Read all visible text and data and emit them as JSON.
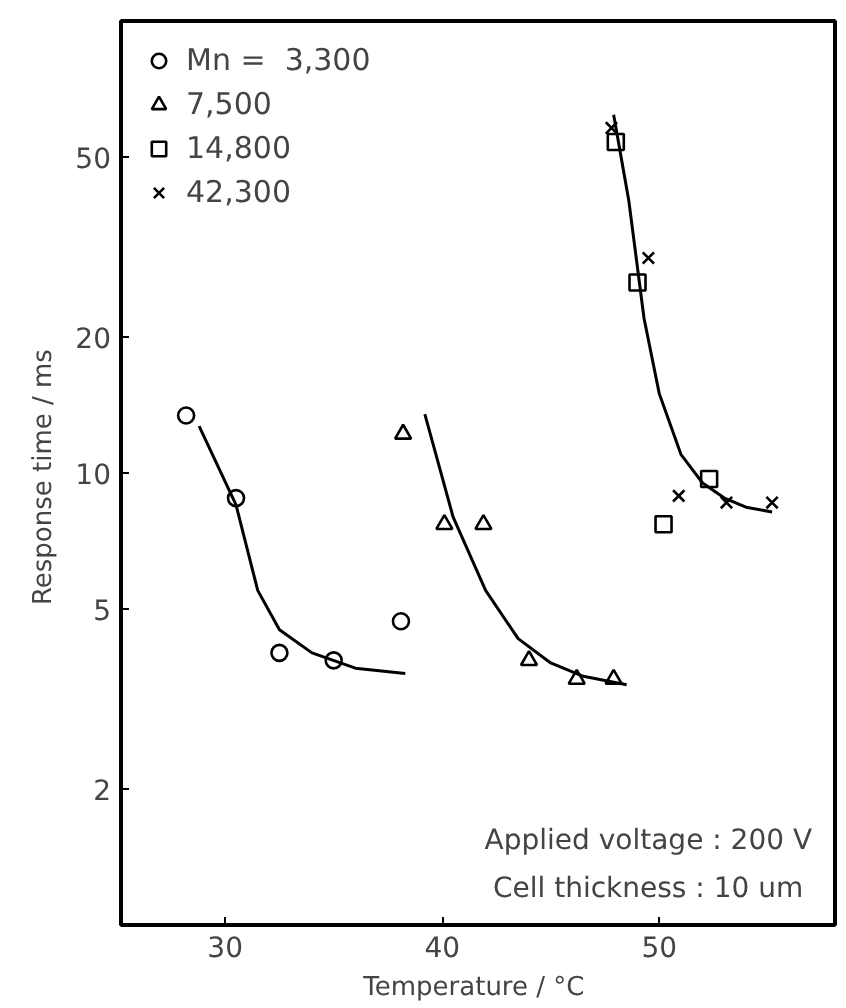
{
  "chart_data": {
    "type": "scatter",
    "xlabel": "Temperature  / °C",
    "ylabel": "Response time  / ms",
    "log": "y",
    "xlim": [
      25.2,
      58.1
    ],
    "ylim": [
      1,
      100
    ],
    "xticks": [
      30,
      40,
      50
    ],
    "yticks": [
      2,
      5,
      10,
      20,
      50
    ],
    "grid": false,
    "legend": "top left",
    "color": "#000000",
    "series": [
      {
        "name": "Mn =  3,300",
        "marker": "circle",
        "color": "#000000",
        "x": [
          28.2,
          30.5,
          32.5,
          35.0,
          38.1
        ],
        "values": [
          13.4,
          8.8,
          4.0,
          3.85,
          4.7
        ]
      },
      {
        "name": "7,500",
        "marker": "triangle",
        "color": "#000000",
        "x": [
          38.2,
          40.1,
          41.9,
          44.0,
          46.2,
          47.9
        ],
        "values": [
          12.2,
          7.7,
          7.7,
          3.85,
          3.5,
          3.5
        ]
      },
      {
        "name": "14,800",
        "marker": "square",
        "color": "#000000",
        "x": [
          48.0,
          49.0,
          50.2,
          52.3
        ],
        "values": [
          54,
          26.4,
          7.7,
          9.7
        ]
      },
      {
        "name": "42,300",
        "marker": "cross",
        "color": "#000000",
        "x": [
          47.8,
          49.5,
          50.9,
          53.1,
          55.2
        ],
        "values": [
          58,
          29.9,
          8.9,
          8.6,
          8.6
        ]
      },
      {
        "type": "line",
        "color": "#000000",
        "x": [
          28.8,
          30.5,
          31.5,
          32.5,
          34,
          36,
          38.3
        ],
        "values": [
          12.7,
          8.5,
          5.5,
          4.5,
          4.0,
          3.7,
          3.6
        ]
      },
      {
        "type": "line",
        "color": "#000000",
        "x": [
          39.2,
          40.5,
          42,
          43.5,
          45,
          46.5,
          48.5
        ],
        "values": [
          13.5,
          8,
          5.5,
          4.3,
          3.8,
          3.55,
          3.4
        ]
      },
      {
        "type": "line",
        "color": "#000000",
        "x": [
          47.9,
          48.6,
          49.3,
          50,
          51,
          52,
          53,
          54,
          55.2
        ],
        "values": [
          62,
          40,
          22,
          15,
          11,
          9.5,
          8.8,
          8.4,
          8.2
        ]
      }
    ],
    "annotations": [
      "Applied voltage :  200 V",
      "Cell  thickness :  10 um"
    ]
  }
}
